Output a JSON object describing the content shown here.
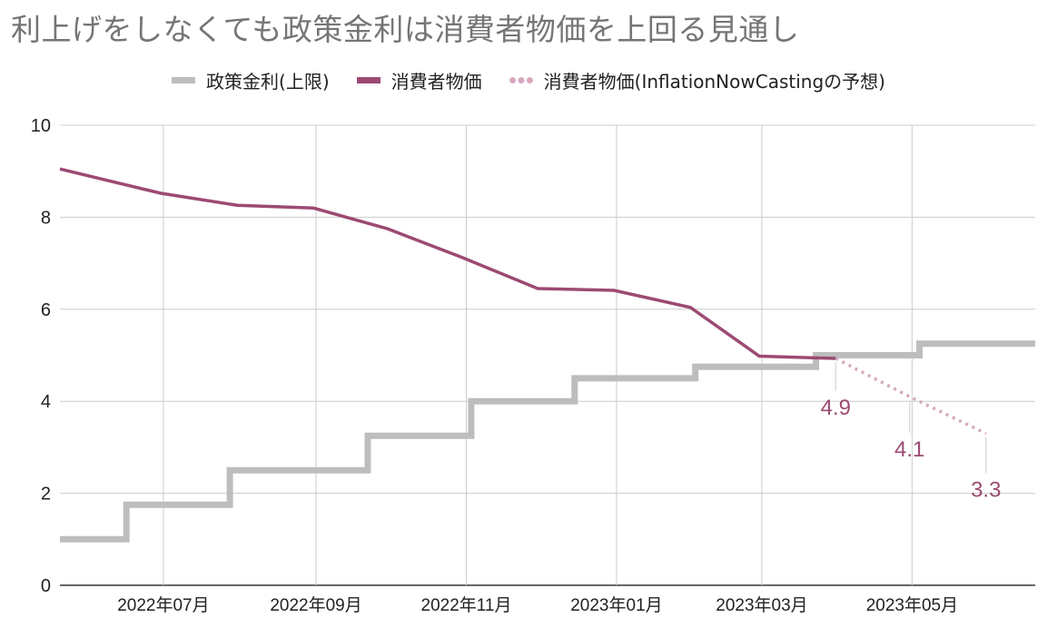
{
  "title": "利上げをしなくても政策金利は消費者物価を上回る見通し",
  "legend": [
    {
      "name": "政策金利(上限)",
      "color": "#bdbdbd",
      "style": "solid"
    },
    {
      "name": "消費者物価",
      "color": "#9c4a73",
      "style": "solid"
    },
    {
      "name": "消費者物価(InflationNowCastingの予想)",
      "color": "#d7a8c0",
      "style": "dotted"
    }
  ],
  "chart_data": {
    "type": "line",
    "title": "利上げをしなくても政策金利は消費者物価を上回る見通し",
    "xlabel": "",
    "ylabel": "",
    "ylim": [
      0,
      10
    ],
    "xlim": [
      "2022-05-20",
      "2023-06-20"
    ],
    "yticks": [
      "0",
      "2",
      "4",
      "6",
      "8",
      "10"
    ],
    "xticks": [
      {
        "date": "2022-07-01",
        "label": "2022年07月"
      },
      {
        "date": "2022-09-01",
        "label": "2022年09月"
      },
      {
        "date": "2022-11-01",
        "label": "2022年11月"
      },
      {
        "date": "2023-01-01",
        "label": "2023年01月"
      },
      {
        "date": "2023-03-01",
        "label": "2023年03月"
      },
      {
        "date": "2023-05-01",
        "label": "2023年05月"
      }
    ],
    "grid": true,
    "legend_position": "top",
    "series": [
      {
        "name": "政策金利(上限)",
        "color": "#bdbdbd",
        "style": "step",
        "points": [
          [
            "2022-05-20",
            1.0
          ],
          [
            "2022-06-16",
            1.0
          ],
          [
            "2022-06-16",
            1.75
          ],
          [
            "2022-07-28",
            1.75
          ],
          [
            "2022-07-28",
            2.5
          ],
          [
            "2022-09-22",
            2.5
          ],
          [
            "2022-09-22",
            3.25
          ],
          [
            "2022-11-03",
            3.25
          ],
          [
            "2022-11-03",
            4.0
          ],
          [
            "2022-12-15",
            4.0
          ],
          [
            "2022-12-15",
            4.5
          ],
          [
            "2023-02-02",
            4.5
          ],
          [
            "2023-02-02",
            4.75
          ],
          [
            "2023-03-23",
            4.75
          ],
          [
            "2023-03-23",
            5.0
          ],
          [
            "2023-05-04",
            5.0
          ],
          [
            "2023-05-04",
            5.25
          ],
          [
            "2023-06-20",
            5.25
          ]
        ]
      },
      {
        "name": "消費者物価",
        "color": "#9c4a73",
        "style": "solid",
        "points": [
          [
            "2022-05-20",
            9.05
          ],
          [
            "2022-06-30",
            8.52
          ],
          [
            "2022-07-31",
            8.26
          ],
          [
            "2022-08-31",
            8.2
          ],
          [
            "2022-09-30",
            7.75
          ],
          [
            "2022-10-31",
            7.11
          ],
          [
            "2022-11-30",
            6.45
          ],
          [
            "2022-12-31",
            6.41
          ],
          [
            "2023-01-31",
            6.04
          ],
          [
            "2023-02-28",
            4.98
          ],
          [
            "2023-03-31",
            4.93
          ]
        ]
      },
      {
        "name": "消費者物価(InflationNowCastingの予想)",
        "color": "#d7a8c0",
        "style": "dotted",
        "points": [
          [
            "2023-03-31",
            4.93
          ],
          [
            "2023-04-30",
            4.1
          ],
          [
            "2023-05-31",
            3.3
          ]
        ]
      }
    ],
    "annotations": [
      {
        "date": "2023-03-31",
        "value": 4.93,
        "label": "4.9",
        "color": "#9c4a73"
      },
      {
        "date": "2023-04-30",
        "value": 4.1,
        "label": "4.1",
        "color": "#9c4a73"
      },
      {
        "date": "2023-05-31",
        "value": 3.3,
        "label": "3.3",
        "color": "#9c4a73"
      }
    ]
  }
}
